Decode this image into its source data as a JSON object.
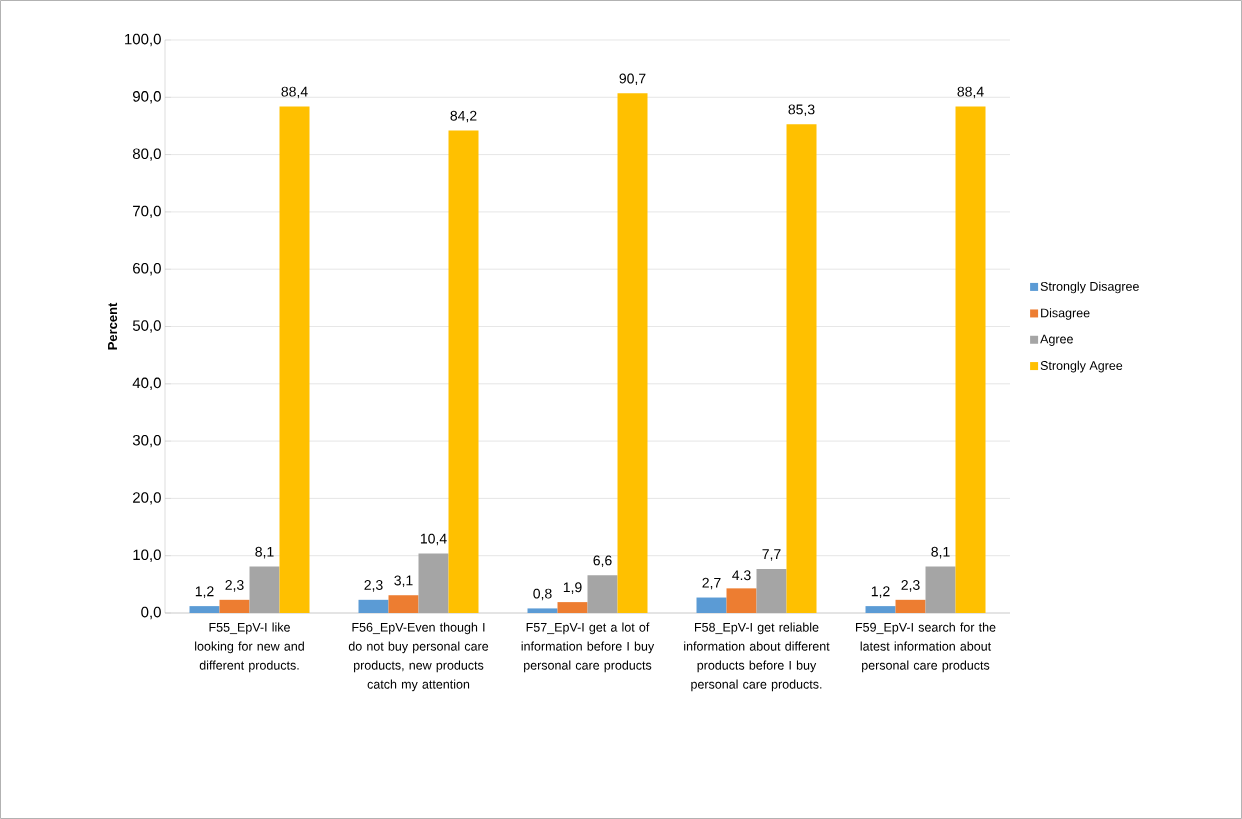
{
  "chart_data": {
    "type": "bar",
    "ylabel": "Percent",
    "categories": [
      "F55_EpV-I like looking for new and different products.",
      "F56_EpV-Even though I do not buy personal care products, new products catch my attention",
      "F57_EpV-I get a lot of information before I buy personal care products",
      "F58_EpV-I get reliable information about different products before I buy personal care products.",
      "F59_EpV-I search for the latest information about personal care products"
    ],
    "series": [
      {
        "name": "Strongly Disagree",
        "color": "#5b9bd5",
        "values": [
          1.2,
          2.3,
          0.8,
          2.7,
          1.2
        ],
        "value_labels": [
          "1,2",
          "2,3",
          "0,8",
          "2,7",
          "1,2"
        ]
      },
      {
        "name": "Disagree",
        "color": "#ed7d31",
        "values": [
          2.3,
          3.1,
          1.9,
          4.3,
          2.3
        ],
        "value_labels": [
          "2,3",
          "3,1",
          "1,9",
          "4.3",
          "2,3"
        ]
      },
      {
        "name": "Agree",
        "color": "#a5a5a5",
        "values": [
          8.1,
          10.4,
          6.6,
          7.7,
          8.1
        ],
        "value_labels": [
          "8,1",
          "10,4",
          "6,6",
          "7,7",
          "8,1"
        ]
      },
      {
        "name": "Strongly Agree",
        "color": "#ffc000",
        "values": [
          88.4,
          84.2,
          90.7,
          85.3,
          88.4
        ],
        "value_labels": [
          "88,4",
          "84,2",
          "90,7",
          "85,3",
          "88,4"
        ]
      }
    ],
    "ylim": [
      0,
      100
    ],
    "yticks": [
      {
        "value": 0,
        "label": "0,0"
      },
      {
        "value": 10,
        "label": "10,0"
      },
      {
        "value": 20,
        "label": "20,0"
      },
      {
        "value": 30,
        "label": "30,0"
      },
      {
        "value": 40,
        "label": "40,0"
      },
      {
        "value": 50,
        "label": "50,0"
      },
      {
        "value": 60,
        "label": "60,0"
      },
      {
        "value": 70,
        "label": "70,0"
      },
      {
        "value": 80,
        "label": "80,0"
      },
      {
        "value": 90,
        "label": "90,0"
      },
      {
        "value": 100,
        "label": "100,0"
      }
    ],
    "grid": "y",
    "legend": "right"
  }
}
